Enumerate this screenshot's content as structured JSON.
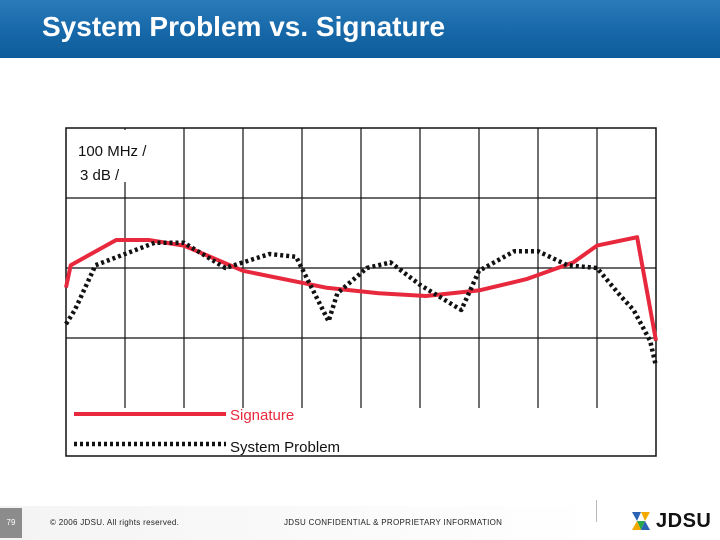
{
  "header": {
    "title": "System Problem vs. Signature"
  },
  "footer": {
    "page_number": "79",
    "copyright": "© 2006 JDSU. All rights reserved.",
    "confidential": "JDSU CONFIDENTIAL & PROPRIETARY INFORMATION",
    "logo_text": "JDSU"
  },
  "colors": {
    "header_blue": "#1668a8",
    "signature": "#e8283c",
    "system_problem": "#111111",
    "grid": "#111111"
  },
  "chart_data": {
    "type": "line",
    "title": "System Problem vs. Signature",
    "scale_label_line1": "100 MHz /",
    "scale_label_line2": "3 dB /",
    "xlim": [
      0,
      10
    ],
    "ylim": [
      0,
      10
    ],
    "grid": true,
    "legend_placement": "bottom-center",
    "series": [
      {
        "name": "Signature",
        "style": "solid",
        "x": [
          0,
          0.08,
          0.85,
          1.4,
          2.0,
          3.0,
          4.4,
          5.3,
          6.1,
          7.0,
          7.8,
          8.6,
          9.0,
          9.68,
          10
        ],
        "y": [
          4.3,
          5.1,
          6.0,
          6.0,
          5.8,
          4.9,
          4.3,
          4.1,
          4.0,
          4.2,
          4.6,
          5.2,
          5.8,
          6.1,
          2.4
        ]
      },
      {
        "name": "System Problem",
        "style": "dotted",
        "x": [
          0,
          0.15,
          0.5,
          1.5,
          2.0,
          2.7,
          3.45,
          3.9,
          4.45,
          4.6,
          5.1,
          5.5,
          6.0,
          6.7,
          7.0,
          7.6,
          8.0,
          8.5,
          9.0,
          9.4,
          9.62,
          9.9,
          10
        ],
        "y": [
          3.0,
          3.5,
          5.1,
          5.9,
          5.9,
          5.0,
          5.5,
          5.4,
          3.1,
          4.1,
          5.0,
          5.2,
          4.4,
          3.5,
          4.9,
          5.6,
          5.6,
          5.1,
          5.0,
          4.0,
          3.5,
          2.4,
          1.5
        ]
      }
    ]
  }
}
